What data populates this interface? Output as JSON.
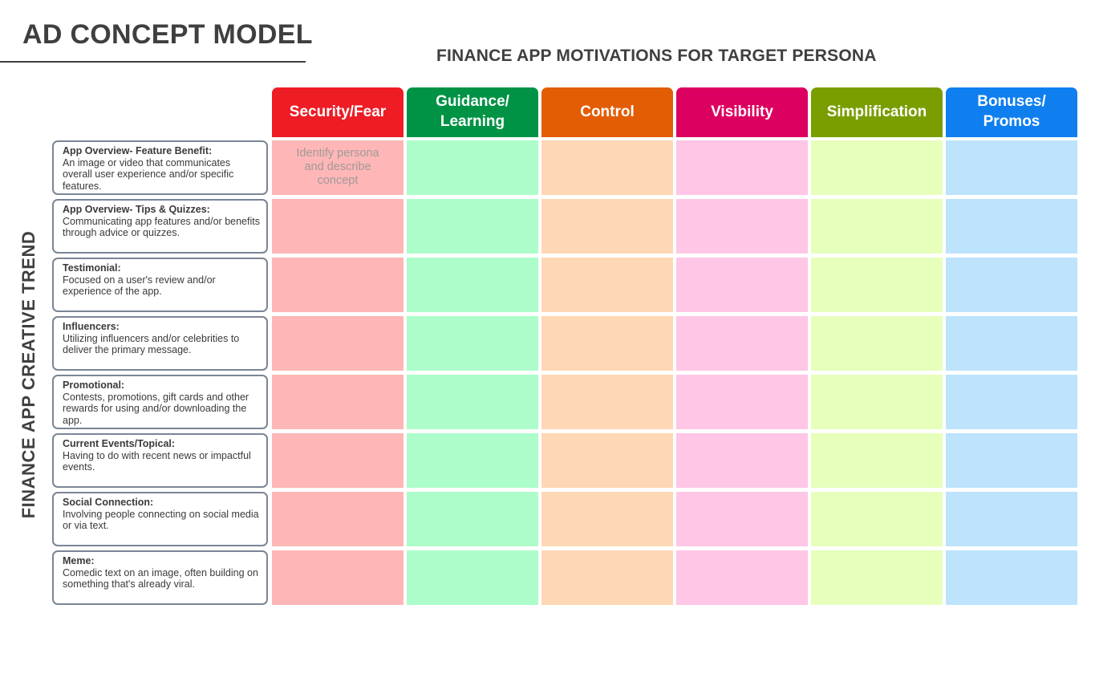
{
  "page_title": "AD CONCEPT MODEL",
  "matrix_title": "FINANCE APP MOTIVATIONS FOR TARGET PERSONA",
  "side_label": "FINANCE APP CREATIVE TREND",
  "columns": [
    {
      "label": "Security/Fear",
      "header_color": "#ee1c25",
      "cell_color": "#ffb6b6"
    },
    {
      "label": "Guidance/ Learning",
      "header_color": "#009345",
      "cell_color": "#adfdca"
    },
    {
      "label": "Control",
      "header_color": "#e35d05",
      "cell_color": "#fed7b4"
    },
    {
      "label": "Visibility",
      "header_color": "#dc0060",
      "cell_color": "#ffc6e6"
    },
    {
      "label": "Simplification",
      "header_color": "#7a9e00",
      "cell_color": "#e6ffbb"
    },
    {
      "label": "Bonuses/ Promos",
      "header_color": "#0f7ff0",
      "cell_color": "#bde3fd"
    }
  ],
  "rows": [
    {
      "title": "App Overview- Feature Benefit:",
      "description": "An image or video that communicates overall user experience and/or specific features."
    },
    {
      "title": "App Overview- Tips & Quizzes:",
      "description": "Communicating app features and/or benefits through advice or quizzes."
    },
    {
      "title": "Testimonial:",
      "description": "Focused on a user's review and/or experience of the app."
    },
    {
      "title": "Influencers:",
      "description": "Utilizing influencers and/or celebrities to deliver the primary message."
    },
    {
      "title": "Promotional:",
      "description": "Contests, promotions, gift cards and other rewards for using and/or downloading the app."
    },
    {
      "title": "Current Events/Topical:",
      "description": "Having to do with recent news or impactful events."
    },
    {
      "title": "Social Connection:",
      "description": "Involving people connecting on social media or via text."
    },
    {
      "title": "Meme:",
      "description": "Comedic text on an image, often building on something that's already viral."
    }
  ],
  "cells": [
    [
      "Identify persona and describe concept",
      "",
      "",
      "",
      "",
      ""
    ],
    [
      "",
      "",
      "",
      "",
      "",
      ""
    ],
    [
      "",
      "",
      "",
      "",
      "",
      ""
    ],
    [
      "",
      "",
      "",
      "",
      "",
      ""
    ],
    [
      "",
      "",
      "",
      "",
      "",
      ""
    ],
    [
      "",
      "",
      "",
      "",
      "",
      ""
    ],
    [
      "",
      "",
      "",
      "",
      "",
      ""
    ],
    [
      "",
      "",
      "",
      "",
      "",
      ""
    ]
  ]
}
